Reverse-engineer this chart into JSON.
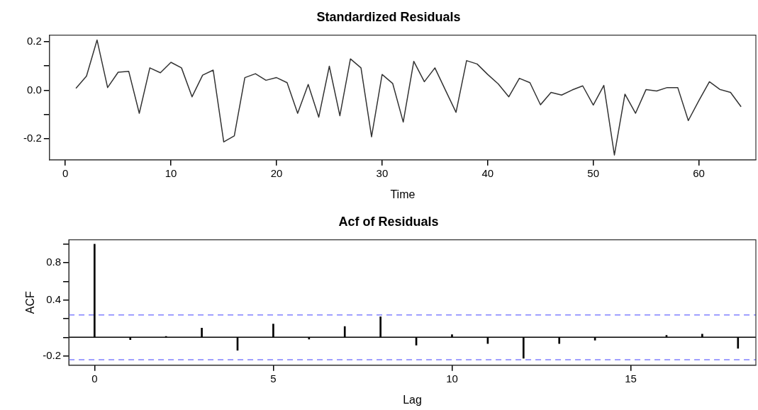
{
  "chart_data": [
    {
      "type": "line",
      "title": "Standardized Residuals",
      "xlabel": "Time",
      "x": [
        1,
        2,
        3,
        4,
        5,
        6,
        7,
        8,
        9,
        10,
        11,
        12,
        13,
        14,
        15,
        16,
        17,
        18,
        19,
        20,
        21,
        22,
        23,
        24,
        25,
        26,
        27,
        28,
        29,
        30,
        31,
        32,
        33,
        34,
        35,
        36,
        37,
        38,
        39,
        40,
        41,
        42,
        43,
        44,
        45,
        46,
        47,
        48,
        49,
        50,
        51,
        52,
        53,
        54,
        55,
        56,
        57,
        58,
        59,
        60,
        61,
        62,
        63,
        64
      ],
      "series": [
        {
          "color": "#333333",
          "values": [
            0.008,
            0.058,
            0.207,
            0.011,
            0.074,
            0.078,
            -0.095,
            0.092,
            0.072,
            0.115,
            0.092,
            -0.027,
            0.062,
            0.083,
            -0.213,
            -0.188,
            0.052,
            0.068,
            0.041,
            0.052,
            0.031,
            -0.095,
            0.024,
            -0.111,
            0.099,
            -0.105,
            0.129,
            0.092,
            -0.192,
            0.065,
            0.028,
            -0.131,
            0.119,
            0.035,
            0.092,
            0.0,
            -0.091,
            0.122,
            0.108,
            0.065,
            0.026,
            -0.027,
            0.049,
            0.031,
            -0.06,
            -0.009,
            -0.02,
            0.001,
            0.018,
            -0.061,
            0.02,
            -0.267,
            -0.016,
            -0.095,
            0.003,
            -0.003,
            0.011,
            0.011,
            -0.125,
            -0.043,
            0.035,
            0.003,
            -0.009,
            -0.068
          ]
        }
      ],
      "xlim": [
        -1.5,
        65.4
      ],
      "xticks": [
        0,
        10,
        20,
        30,
        40,
        50,
        60
      ],
      "ylim": [
        -0.287,
        0.227
      ],
      "yticks": [
        {
          "value": -0.2,
          "label": "-0.2"
        },
        {
          "value": -0.1,
          "label": null
        },
        {
          "value": 0,
          "label": "0.0"
        },
        {
          "value": 0.1,
          "label": null
        },
        {
          "value": 0.2,
          "label": "0.2"
        }
      ],
      "grid": false,
      "legend": false
    },
    {
      "type": "bar",
      "title": "Acf of Residuals",
      "xlabel": "Lag",
      "ylabel": "ACF",
      "x": [
        0,
        1,
        2,
        3,
        4,
        5,
        6,
        7,
        8,
        9,
        10,
        11,
        12,
        13,
        14,
        15,
        16,
        17,
        18
      ],
      "series": [
        {
          "color": "#000000",
          "values": [
            1.0,
            -0.026,
            0.01,
            0.098,
            -0.139,
            0.143,
            -0.02,
            0.116,
            0.221,
            -0.084,
            0.028,
            -0.067,
            -0.225,
            -0.067,
            -0.032,
            0.0,
            0.021,
            0.035,
            -0.119
          ]
        }
      ],
      "xlim": [
        -0.72,
        18.5
      ],
      "xticks": [
        0,
        5,
        10,
        15
      ],
      "ylim": [
        -0.3,
        1.047
      ],
      "yticks": [
        {
          "value": -0.2,
          "label": "-0.2"
        },
        {
          "value": 0,
          "label": null
        },
        {
          "value": 0.2,
          "label": null
        },
        {
          "value": 0.4,
          "label": "0.4"
        },
        {
          "value": 0.6,
          "label": null
        },
        {
          "value": 0.8,
          "label": "0.8"
        },
        {
          "value": 1.0,
          "label": null
        }
      ],
      "ref_lines": [
        {
          "axis": "y",
          "value": 0,
          "color": "#000000",
          "line_style": "solid"
        },
        {
          "axis": "y",
          "value": 0.24,
          "color": "#8080ff",
          "line_style": "dashed"
        },
        {
          "axis": "y",
          "value": -0.24,
          "color": "#8080ff",
          "line_style": "dashed"
        }
      ],
      "grid": false,
      "legend": false
    }
  ]
}
